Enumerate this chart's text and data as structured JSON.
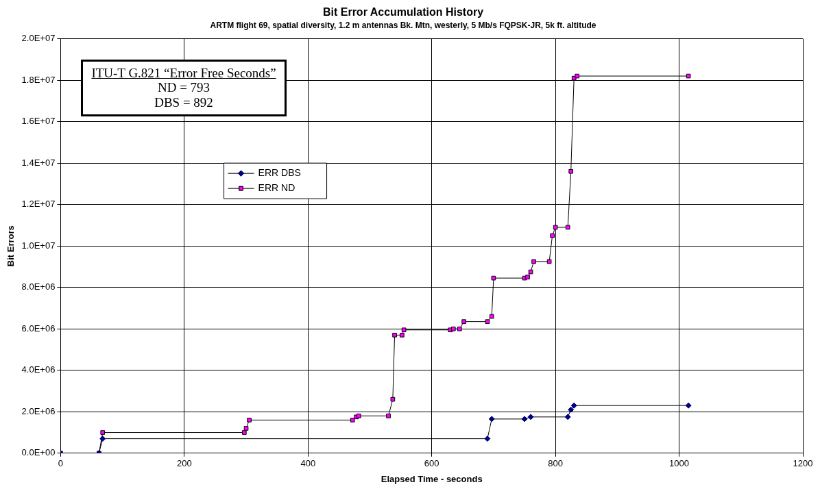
{
  "chart_data": {
    "type": "line",
    "title": "Bit Error Accumulation History",
    "subtitle": "ARTM flight 69, spatial diversity, 1.2 m antennas Bk. Mtn, westerly, 5 Mb/s FQPSK-JR, 5k ft. altitude",
    "xlabel": "Elapsed Time - seconds",
    "ylabel": "Bit Errors",
    "xlim": [
      0,
      1200
    ],
    "xticks": [
      0,
      200,
      400,
      600,
      800,
      1000,
      1200
    ],
    "ylim": [
      0,
      20000000
    ],
    "yticks": [
      {
        "value": 0,
        "label": "0.0E+00"
      },
      {
        "value": 2000000,
        "label": "2.0E+06"
      },
      {
        "value": 4000000,
        "label": "4.0E+06"
      },
      {
        "value": 6000000,
        "label": "6.0E+06"
      },
      {
        "value": 8000000,
        "label": "8.0E+06"
      },
      {
        "value": 10000000,
        "label": "1.0E+07"
      },
      {
        "value": 12000000,
        "label": "1.2E+07"
      },
      {
        "value": 14000000,
        "label": "1.4E+07"
      },
      {
        "value": 16000000,
        "label": "1.6E+07"
      },
      {
        "value": 18000000,
        "label": "1.8E+07"
      },
      {
        "value": 20000000,
        "label": "2.0E+07"
      }
    ],
    "grid": true,
    "legend": "top left",
    "line_style": "solid",
    "annotations": [
      "ITU-T G.821 “Error Free Seconds”",
      "ND = 793",
      "DBS = 892"
    ],
    "series": [
      {
        "name": "ERR DBS",
        "color": "#000080",
        "marker": "diamond",
        "x": [
          0,
          62,
          68,
          690,
          697,
          750,
          760,
          820,
          825,
          830,
          1015
        ],
        "values": [
          0,
          0,
          700000,
          700000,
          1650000,
          1650000,
          1750000,
          1750000,
          2100000,
          2300000,
          2300000
        ]
      },
      {
        "name": "ERR ND",
        "color": "#ff00ff",
        "marker": "square",
        "x": [
          0,
          62,
          68,
          297,
          300,
          305,
          472,
          478,
          482,
          530,
          537,
          540,
          552,
          555,
          630,
          635,
          645,
          652,
          690,
          697,
          700,
          750,
          755,
          760,
          765,
          790,
          795,
          800,
          820,
          825,
          830,
          835,
          1015
        ],
        "values": [
          0,
          0,
          1000000,
          1000000,
          1200000,
          1600000,
          1600000,
          1750000,
          1800000,
          1800000,
          2600000,
          5700000,
          5700000,
          5950000,
          5950000,
          6000000,
          6000000,
          6350000,
          6350000,
          6600000,
          8450000,
          8450000,
          8500000,
          8750000,
          9250000,
          9250000,
          10500000,
          10900000,
          10900000,
          13600000,
          18100000,
          18200000,
          18200000
        ]
      }
    ]
  }
}
